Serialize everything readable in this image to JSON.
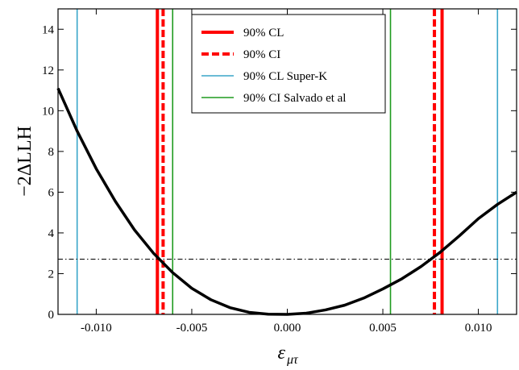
{
  "chart_data": {
    "type": "line",
    "xlabel": "ε",
    "xlabel_sub": "μτ",
    "ylabel": "−2ΔLLH",
    "xlim": [
      -0.012,
      0.012
    ],
    "ylim": [
      0,
      15
    ],
    "xticks": [
      -0.01,
      -0.005,
      0.0,
      0.005,
      0.01
    ],
    "xtick_labels": [
      "-0.010",
      "-0.005",
      "0.000",
      "0.005",
      "0.010"
    ],
    "yticks": [
      0,
      2,
      4,
      6,
      8,
      10,
      12,
      14
    ],
    "ytick_labels": [
      "0",
      "2",
      "4",
      "6",
      "8",
      "10",
      "12",
      "14"
    ],
    "grid": false,
    "legend_position": "top-center",
    "series": [
      {
        "style": "solid",
        "color": "#000000",
        "x": [
          -0.012,
          -0.011,
          -0.01,
          -0.009,
          -0.008,
          -0.007,
          -0.006,
          -0.005,
          -0.004,
          -0.003,
          -0.002,
          -0.001,
          0.0,
          0.001,
          0.002,
          0.003,
          0.004,
          0.005,
          0.006,
          0.007,
          0.008,
          0.009,
          0.01,
          0.011,
          0.012
        ],
        "y": [
          11.1,
          9.0,
          7.15,
          5.55,
          4.15,
          3.0,
          2.05,
          1.28,
          0.72,
          0.33,
          0.1,
          0.01,
          0.0,
          0.06,
          0.22,
          0.45,
          0.8,
          1.25,
          1.75,
          2.35,
          3.05,
          3.85,
          4.7,
          5.4,
          6.0
        ]
      }
    ],
    "threshold": {
      "y": 2.71,
      "style": "dash-dot",
      "color": "#000000"
    },
    "vlines": [
      {
        "legend": "90% CL",
        "color": "#ff0000",
        "style": "solid",
        "width": "thick",
        "x": [
          -0.0068,
          0.0081
        ]
      },
      {
        "legend": "90% CI",
        "color": "#ff0000",
        "style": "dashed",
        "width": "thick",
        "x": [
          -0.0065,
          0.0077
        ]
      },
      {
        "legend": "90% CL Super-K",
        "color": "#3aa6c9",
        "style": "solid",
        "width": "thin",
        "x": [
          -0.011,
          0.011
        ]
      },
      {
        "legend": "90% CI Salvado et al",
        "color": "#1f9b1f",
        "style": "solid",
        "width": "thin",
        "x": [
          -0.006,
          0.0054
        ]
      }
    ],
    "legend": [
      {
        "label": "90% CL"
      },
      {
        "label": "90% CI"
      },
      {
        "label": "90% CL Super-K"
      },
      {
        "label": "90% CI Salvado et al"
      }
    ]
  }
}
